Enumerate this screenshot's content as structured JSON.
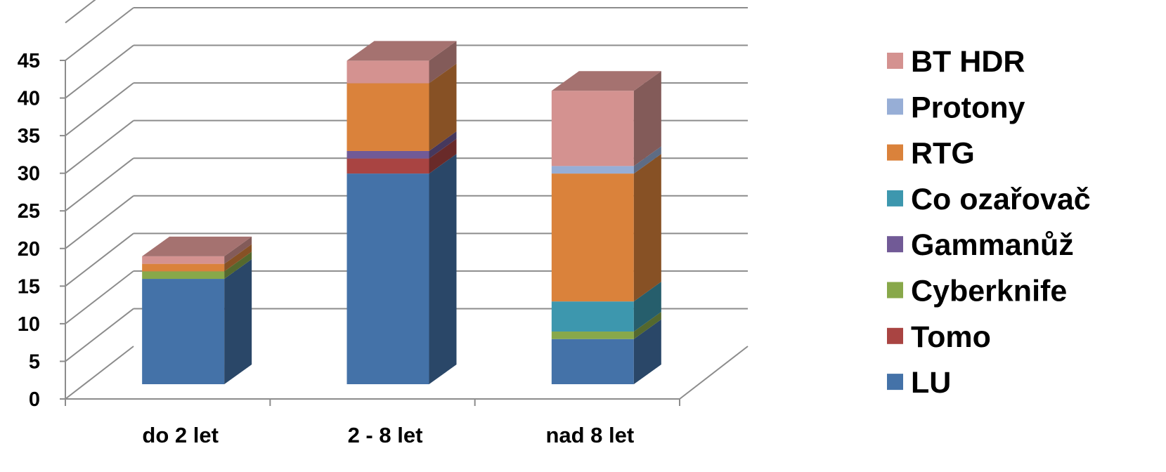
{
  "chart_data": {
    "type": "bar",
    "stacked": true,
    "style": "3d",
    "categories": [
      "do 2 let",
      "2 - 8 let",
      "nad 8 let"
    ],
    "ylim": [
      0,
      45
    ],
    "yticks": [
      "0",
      "5",
      "10",
      "15",
      "20",
      "25",
      "30",
      "35",
      "40",
      "45"
    ],
    "grid": true,
    "legend_position": "right",
    "series": [
      {
        "name": "LU",
        "color": "#4472A8",
        "values": [
          14,
          28,
          6
        ]
      },
      {
        "name": "Tomo",
        "color": "#A94442",
        "values": [
          0,
          2,
          0
        ]
      },
      {
        "name": "Cyberknife",
        "color": "#88A84A",
        "values": [
          1,
          0,
          1
        ]
      },
      {
        "name": "Gammanůž",
        "color": "#715A96",
        "values": [
          0,
          1,
          0
        ]
      },
      {
        "name": "Co ozařovač",
        "color": "#3D97AE",
        "values": [
          0,
          0,
          4
        ]
      },
      {
        "name": "RTG",
        "color": "#DA823B",
        "values": [
          1,
          9,
          17
        ]
      },
      {
        "name": "Protony",
        "color": "#97AED6",
        "values": [
          0,
          0,
          1
        ]
      },
      {
        "name": "BT HDR",
        "color": "#D49290",
        "values": [
          1,
          3,
          10
        ]
      }
    ]
  }
}
